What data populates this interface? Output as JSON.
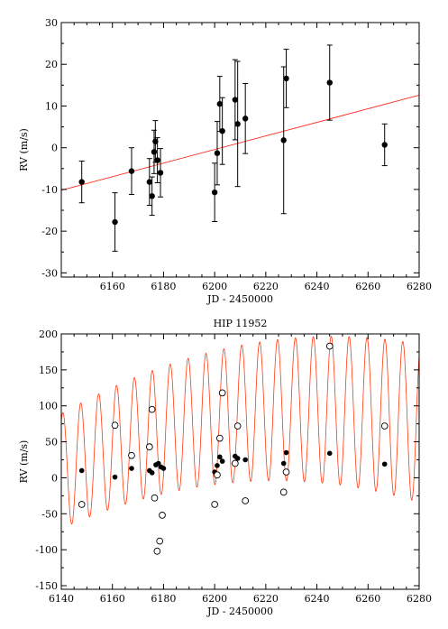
{
  "chart_data": [
    {
      "type": "scatter",
      "title": "",
      "xlabel": "JD - 2450000",
      "ylabel": "RV (m/s)",
      "xlim": [
        6140,
        6280
      ],
      "ylim": [
        -31,
        30
      ],
      "xticks": [
        6160,
        6180,
        6200,
        6220,
        6240,
        6260,
        6280
      ],
      "yticks": [
        -30,
        -20,
        -10,
        0,
        10,
        20,
        30
      ],
      "grid": false,
      "colors": {
        "points": "#000000",
        "fit": "#ff2a1a"
      },
      "points": [
        {
          "x": 6148.0,
          "y": -8.2,
          "err": 5.0
        },
        {
          "x": 6161.0,
          "y": -17.8,
          "err": 7.0
        },
        {
          "x": 6167.5,
          "y": -5.6,
          "err": 5.6
        },
        {
          "x": 6174.5,
          "y": -8.2,
          "err": 5.6
        },
        {
          "x": 6175.5,
          "y": -11.6,
          "err": 4.6
        },
        {
          "x": 6176.3,
          "y": -1.0,
          "err": 5.2
        },
        {
          "x": 6176.8,
          "y": 1.5,
          "err": 5.0
        },
        {
          "x": 6177.6,
          "y": -3.0,
          "err": 5.4
        },
        {
          "x": 6178.8,
          "y": -6.0,
          "err": 5.8
        },
        {
          "x": 6200.0,
          "y": -10.7,
          "err": 7.0
        },
        {
          "x": 6201.0,
          "y": -1.3,
          "err": 7.6
        },
        {
          "x": 6202.0,
          "y": 10.5,
          "err": 6.6
        },
        {
          "x": 6203.0,
          "y": 4.0,
          "err": 8.0
        },
        {
          "x": 6208.0,
          "y": 11.5,
          "err": 9.6
        },
        {
          "x": 6209.0,
          "y": 5.7,
          "err": 15.0
        },
        {
          "x": 6212.0,
          "y": 7.0,
          "err": 8.4
        },
        {
          "x": 6227.0,
          "y": 1.8,
          "err": 17.6
        },
        {
          "x": 6228.0,
          "y": 16.6,
          "err": 7.0
        },
        {
          "x": 6245.0,
          "y": 15.6,
          "err": 9.0
        },
        {
          "x": 6266.5,
          "y": 0.7,
          "err": 5.0
        }
      ],
      "fit_line": {
        "x": [
          6140,
          6280
        ],
        "y": [
          -10.2,
          12.6
        ]
      }
    },
    {
      "type": "scatter",
      "title": "HIP 11952",
      "xlabel": "JD - 2450000",
      "ylabel": "RV (m/s)",
      "xlim": [
        6140,
        6280
      ],
      "ylim": [
        -155,
        200
      ],
      "xticks": [
        6140,
        6160,
        6180,
        6200,
        6220,
        6240,
        6260,
        6280
      ],
      "yticks": [
        -150,
        -100,
        -50,
        0,
        50,
        100,
        150,
        200
      ],
      "grid": false,
      "colors": {
        "filled": "#000000",
        "open": "#000000",
        "model": "#ff3a10"
      },
      "filled_points": [
        {
          "x": 6148,
          "y": 10
        },
        {
          "x": 6161,
          "y": 1
        },
        {
          "x": 6167.5,
          "y": 13
        },
        {
          "x": 6174.5,
          "y": 10
        },
        {
          "x": 6175.5,
          "y": 7
        },
        {
          "x": 6177,
          "y": 18
        },
        {
          "x": 6178,
          "y": 20
        },
        {
          "x": 6179,
          "y": 15
        },
        {
          "x": 6180,
          "y": 13
        },
        {
          "x": 6200,
          "y": 8
        },
        {
          "x": 6201,
          "y": 17
        },
        {
          "x": 6202,
          "y": 29
        },
        {
          "x": 6203,
          "y": 23
        },
        {
          "x": 6208,
          "y": 30
        },
        {
          "x": 6209,
          "y": 27
        },
        {
          "x": 6212,
          "y": 25
        },
        {
          "x": 6227,
          "y": 20
        },
        {
          "x": 6228,
          "y": 35
        },
        {
          "x": 6245,
          "y": 34
        },
        {
          "x": 6266.5,
          "y": 19
        }
      ],
      "open_points": [
        {
          "x": 6148,
          "y": -37
        },
        {
          "x": 6161,
          "y": 73
        },
        {
          "x": 6167.5,
          "y": 31
        },
        {
          "x": 6174.5,
          "y": 43
        },
        {
          "x": 6175.5,
          "y": 95
        },
        {
          "x": 6176.5,
          "y": -28
        },
        {
          "x": 6177.5,
          "y": -102
        },
        {
          "x": 6178.5,
          "y": -88
        },
        {
          "x": 6179.5,
          "y": -52
        },
        {
          "x": 6200,
          "y": -37
        },
        {
          "x": 6201,
          "y": 4
        },
        {
          "x": 6202,
          "y": 55
        },
        {
          "x": 6203,
          "y": 118
        },
        {
          "x": 6208,
          "y": 20
        },
        {
          "x": 6209,
          "y": 72
        },
        {
          "x": 6212,
          "y": -32
        },
        {
          "x": 6227,
          "y": -20
        },
        {
          "x": 6228,
          "y": 8
        },
        {
          "x": 6245,
          "y": 183
        },
        {
          "x": 6266.5,
          "y": 72
        }
      ],
      "model": {
        "period": 7.0,
        "phase_x": 6140.6,
        "baseline_quadratic": {
          "a": -0.0292,
          "b": 7.1,
          "c": 68.2
        },
        "amplitude": [
          80,
          110
        ]
      }
    }
  ]
}
